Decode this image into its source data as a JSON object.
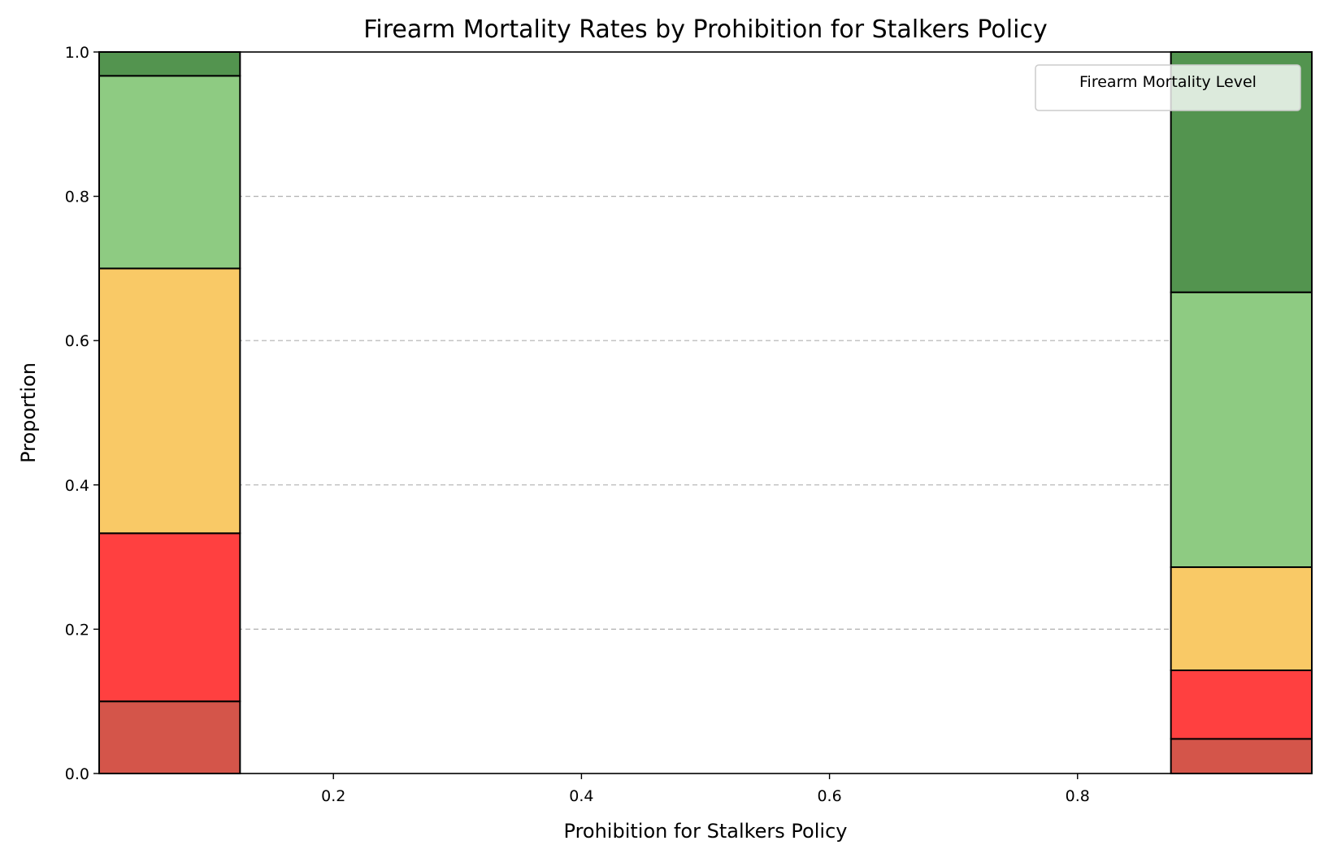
{
  "chart_data": {
    "type": "bar",
    "stacked": true,
    "title": "Firearm Mortality Rates by Prohibition for Stalkers Policy",
    "xlabel": "Prohibition for Stalkers Policy",
    "ylabel": "Proportion",
    "xlim": [
      0.0111,
      0.9889
    ],
    "ylim": [
      0,
      1
    ],
    "xticks": [
      "0.2",
      "0.4",
      "0.6",
      "0.8"
    ],
    "yticks": [
      "0.0",
      "0.2",
      "0.4",
      "0.6",
      "0.8",
      "1.0"
    ],
    "grid": "y-dashed",
    "legend": {
      "title": "Firearm Mortality Level",
      "placement": "top-right",
      "entries": []
    },
    "bins": [
      {
        "x_start": 0.0111,
        "x_end": 0.1247
      },
      {
        "x_start": 0.8753,
        "x_end": 0.9889
      }
    ],
    "series": [
      {
        "color": "#d4554a",
        "values": [
          0.1,
          0.048
        ]
      },
      {
        "color": "#ff4040",
        "values": [
          0.233,
          0.095
        ]
      },
      {
        "color": "#f9c966",
        "values": [
          0.367,
          0.143
        ]
      },
      {
        "color": "#8ecb82",
        "values": [
          0.267,
          0.381
        ]
      },
      {
        "color": "#53944f",
        "values": [
          0.033,
          0.333
        ]
      }
    ]
  }
}
